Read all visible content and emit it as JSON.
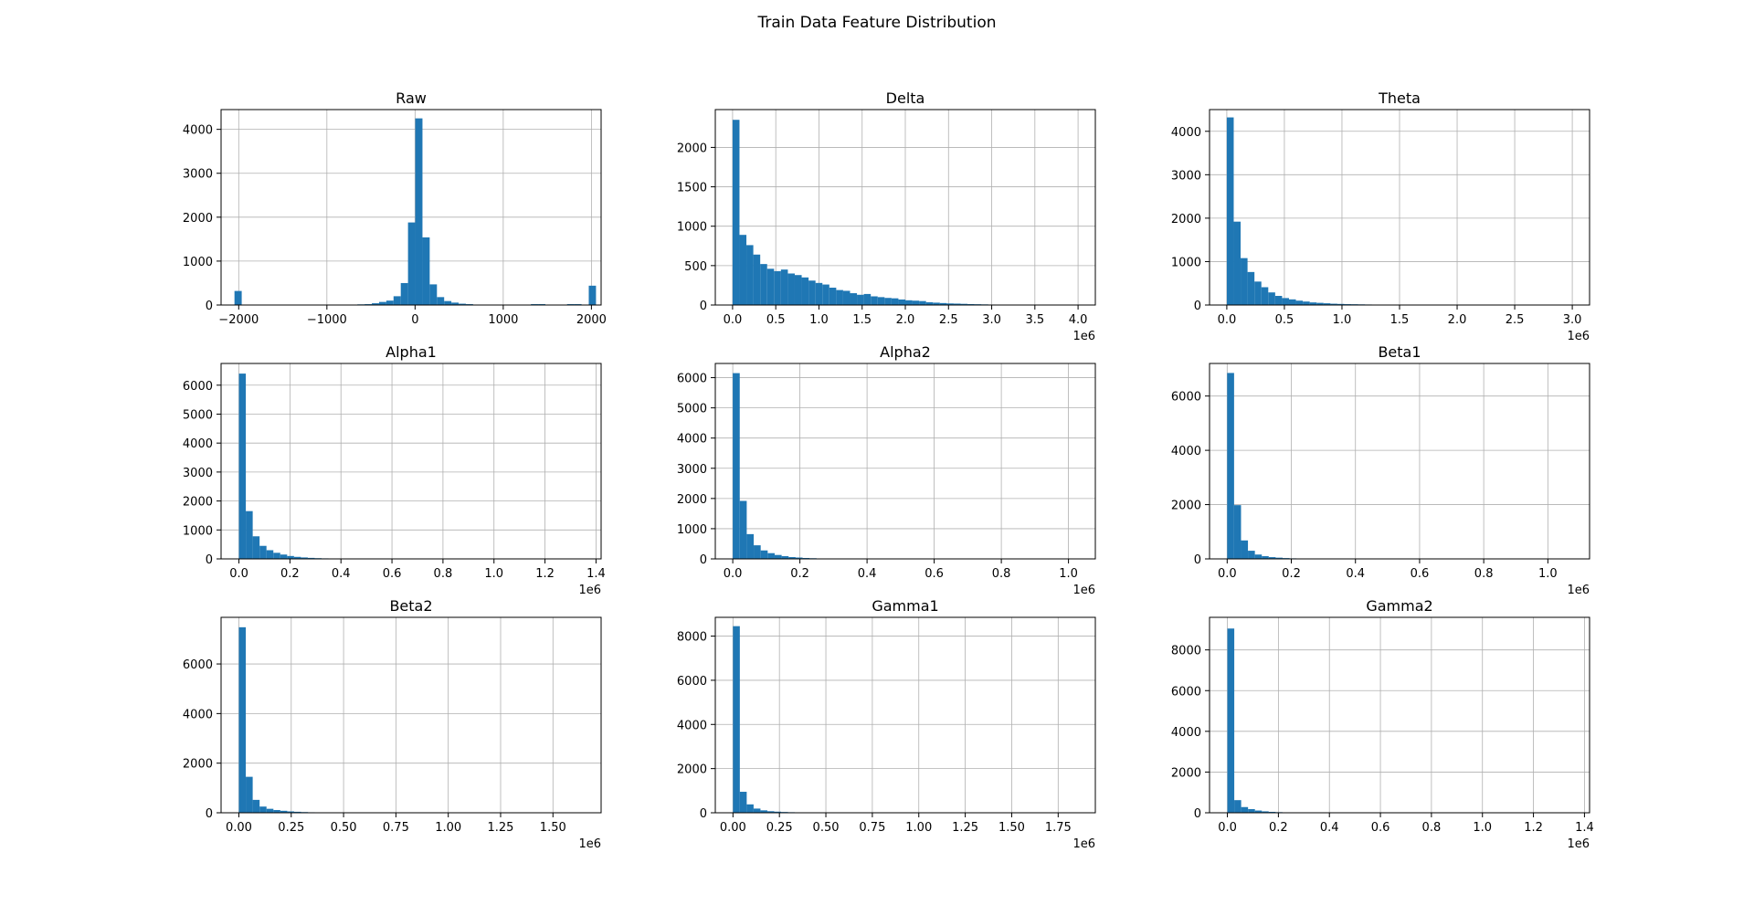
{
  "figure": {
    "title": "Train Data Feature Distribution"
  },
  "colors": {
    "bar": "#1f77b4",
    "grid": "#b0b0b0",
    "axis": "#000000"
  },
  "chart_data": [
    {
      "type": "bar",
      "title": "Raw",
      "xlim": [
        -2200,
        2110
      ],
      "ylim": [
        0,
        4450
      ],
      "xticks": [
        -2000,
        -1000,
        0,
        1000,
        2000
      ],
      "xticklabels": [
        "−2000",
        "−1000",
        "0",
        "1000",
        "2000"
      ],
      "yticks": [
        0,
        1000,
        2000,
        3000,
        4000
      ],
      "yticklabels": [
        "0",
        "1000",
        "2000",
        "3000",
        "4000"
      ],
      "offset_label": "",
      "grid": true,
      "bin_edges": [
        -2048,
        -1966,
        -1884,
        -1802,
        -1720,
        -1638,
        -1556,
        -1474,
        -1392,
        -1310,
        -1228,
        -1146,
        -1064,
        -982,
        -900,
        -818,
        -736,
        -654,
        -572,
        -490,
        -408,
        -326,
        -244,
        -162,
        -80,
        2,
        84,
        166,
        248,
        330,
        412,
        494,
        576,
        658,
        740,
        822,
        904,
        986,
        1068,
        1150,
        1232,
        1314,
        1396,
        1478,
        1560,
        1642,
        1724,
        1806,
        1888,
        1970,
        2052
      ],
      "counts": [
        320,
        0,
        0,
        0,
        0,
        0,
        0,
        0,
        0,
        0,
        0,
        0,
        0,
        0,
        0,
        5,
        10,
        15,
        20,
        40,
        70,
        100,
        200,
        500,
        1880,
        4250,
        1540,
        470,
        180,
        90,
        55,
        30,
        20,
        10,
        5,
        0,
        0,
        0,
        0,
        0,
        0,
        20,
        20,
        0,
        0,
        0,
        20,
        20,
        0,
        440
      ]
    },
    {
      "type": "bar",
      "title": "Delta",
      "xlim": [
        -200000,
        4200000
      ],
      "ylim": [
        0,
        2480
      ],
      "xticks": [
        0,
        500000,
        1000000,
        1500000,
        2000000,
        2500000,
        3000000,
        3500000,
        4000000
      ],
      "xticklabels": [
        "0.0",
        "0.5",
        "1.0",
        "1.5",
        "2.0",
        "2.5",
        "3.0",
        "3.5",
        "4.0"
      ],
      "yticks": [
        0,
        500,
        1000,
        1500,
        2000
      ],
      "yticklabels": [
        "0",
        "500",
        "1000",
        "1500",
        "2000"
      ],
      "offset_label": "1e6",
      "grid": true,
      "bin_edges": [
        0,
        80000,
        160000,
        240000,
        320000,
        400000,
        480000,
        560000,
        640000,
        720000,
        800000,
        880000,
        960000,
        1040000,
        1120000,
        1200000,
        1280000,
        1360000,
        1440000,
        1520000,
        1600000,
        1680000,
        1760000,
        1840000,
        1920000,
        2000000,
        2080000,
        2160000,
        2240000,
        2320000,
        2400000,
        2480000,
        2560000,
        2640000,
        2720000,
        2800000,
        2880000,
        2960000,
        3040000,
        3120000,
        3200000,
        3280000,
        3360000,
        3440000,
        3520000,
        3600000,
        3680000,
        3760000,
        3840000,
        3920000,
        4000000
      ],
      "counts": [
        2350,
        890,
        760,
        640,
        520,
        460,
        430,
        450,
        400,
        380,
        350,
        310,
        280,
        260,
        220,
        190,
        180,
        150,
        130,
        140,
        110,
        100,
        90,
        85,
        70,
        60,
        55,
        50,
        35,
        30,
        25,
        20,
        18,
        15,
        12,
        10,
        8,
        6,
        5,
        4,
        3,
        2,
        2,
        1,
        1,
        1,
        0,
        0,
        0,
        1
      ]
    },
    {
      "type": "bar",
      "title": "Theta",
      "xlim": [
        -150000,
        3150000
      ],
      "ylim": [
        0,
        4500
      ],
      "xticks": [
        0,
        500000,
        1000000,
        1500000,
        2000000,
        2500000,
        3000000
      ],
      "xticklabels": [
        "0.0",
        "0.5",
        "1.0",
        "1.5",
        "2.0",
        "2.5",
        "3.0"
      ],
      "yticks": [
        0,
        1000,
        2000,
        3000,
        4000
      ],
      "yticklabels": [
        "0",
        "1000",
        "2000",
        "3000",
        "4000"
      ],
      "offset_label": "1e6",
      "grid": true,
      "bin_edges": [
        0,
        60000,
        120000,
        180000,
        240000,
        300000,
        360000,
        420000,
        480000,
        540000,
        600000,
        660000,
        720000,
        780000,
        840000,
        900000,
        960000,
        1020000,
        1080000,
        1140000,
        1200000,
        1260000,
        1320000,
        1380000,
        1440000,
        1500000,
        1560000,
        1620000,
        1680000,
        1740000,
        1800000,
        1860000,
        1920000,
        1980000,
        2040000,
        2100000,
        2160000,
        2220000,
        2280000,
        2340000,
        2400000,
        2460000,
        2520000,
        2580000,
        2640000,
        2700000,
        2760000,
        2820000,
        2880000,
        2940000,
        3000000
      ],
      "counts": [
        4320,
        1920,
        1080,
        760,
        540,
        410,
        290,
        210,
        160,
        130,
        100,
        80,
        60,
        50,
        40,
        30,
        25,
        20,
        18,
        15,
        12,
        10,
        8,
        7,
        6,
        5,
        4,
        3,
        2,
        2,
        2,
        1,
        1,
        1,
        1,
        0,
        0,
        0,
        0,
        0,
        0,
        0,
        0,
        0,
        0,
        0,
        0,
        0,
        0,
        1
      ]
    },
    {
      "type": "bar",
      "title": "Alpha1",
      "xlim": [
        -70000,
        1420000
      ],
      "ylim": [
        0,
        6750
      ],
      "xticks": [
        0,
        200000,
        400000,
        600000,
        800000,
        1000000,
        1200000,
        1400000
      ],
      "xticklabels": [
        "0.0",
        "0.2",
        "0.4",
        "0.6",
        "0.8",
        "1.0",
        "1.2",
        "1.4"
      ],
      "yticks": [
        0,
        1000,
        2000,
        3000,
        4000,
        5000,
        6000
      ],
      "yticklabels": [
        "0",
        "1000",
        "2000",
        "3000",
        "4000",
        "5000",
        "6000"
      ],
      "offset_label": "1e6",
      "grid": true,
      "bin_edges": [
        0,
        27000,
        54000,
        81000,
        108000,
        135000,
        162000,
        189000,
        216000,
        243000,
        270000,
        297000,
        324000,
        351000,
        378000,
        405000,
        432000,
        459000,
        486000,
        513000,
        540000,
        567000,
        594000,
        621000,
        648000,
        675000,
        702000,
        729000,
        756000,
        783000,
        810000,
        837000,
        864000,
        891000,
        918000,
        945000,
        972000,
        999000,
        1026000,
        1053000,
        1080000,
        1107000,
        1134000,
        1161000,
        1188000,
        1215000,
        1242000,
        1269000,
        1296000,
        1323000,
        1350000
      ],
      "counts": [
        6400,
        1650,
        780,
        450,
        300,
        210,
        150,
        100,
        70,
        50,
        35,
        25,
        18,
        12,
        9,
        7,
        5,
        4,
        3,
        2,
        2,
        1,
        1,
        1,
        1,
        0,
        0,
        0,
        0,
        0,
        0,
        0,
        0,
        0,
        0,
        0,
        0,
        0,
        0,
        0,
        0,
        0,
        0,
        0,
        0,
        0,
        0,
        0,
        0,
        1
      ]
    },
    {
      "type": "bar",
      "title": "Alpha2",
      "xlim": [
        -52000,
        1080000
      ],
      "ylim": [
        0,
        6470
      ],
      "xticks": [
        0,
        200000,
        400000,
        600000,
        800000,
        1000000
      ],
      "xticklabels": [
        "0.0",
        "0.2",
        "0.4",
        "0.6",
        "0.8",
        "1.0"
      ],
      "yticks": [
        0,
        1000,
        2000,
        3000,
        4000,
        5000,
        6000
      ],
      "yticklabels": [
        "0",
        "1000",
        "2000",
        "3000",
        "4000",
        "5000",
        "6000"
      ],
      "offset_label": "1e6",
      "grid": true,
      "bin_edges": [
        0,
        20800,
        41600,
        62400,
        83200,
        104000,
        124800,
        145600,
        166400,
        187200,
        208000,
        228800,
        249600,
        270400,
        291200,
        312000,
        332800,
        353600,
        374400,
        395200,
        416000,
        436800,
        457600,
        478400,
        499200,
        520000,
        540800,
        561600,
        582400,
        603200,
        624000,
        644800,
        665600,
        686400,
        707200,
        728000,
        748800,
        769600,
        790400,
        811200,
        832000,
        852800,
        873600,
        894400,
        915200,
        936000,
        956800,
        977600,
        998400,
        1019200,
        1040000
      ],
      "counts": [
        6150,
        1920,
        820,
        450,
        280,
        190,
        130,
        90,
        60,
        45,
        30,
        22,
        15,
        10,
        8,
        6,
        4,
        3,
        2,
        2,
        1,
        1,
        1,
        0,
        0,
        0,
        0,
        0,
        0,
        0,
        0,
        0,
        0,
        0,
        0,
        0,
        0,
        0,
        0,
        0,
        0,
        0,
        0,
        0,
        0,
        0,
        0,
        0,
        0,
        1
      ]
    },
    {
      "type": "bar",
      "title": "Beta1",
      "xlim": [
        -55000,
        1130000
      ],
      "ylim": [
        0,
        7200
      ],
      "xticks": [
        0,
        200000,
        400000,
        600000,
        800000,
        1000000
      ],
      "xticklabels": [
        "0.0",
        "0.2",
        "0.4",
        "0.6",
        "0.8",
        "1.0"
      ],
      "yticks": [
        0,
        2000,
        4000,
        6000
      ],
      "yticklabels": [
        "0",
        "2000",
        "4000",
        "6000"
      ],
      "offset_label": "1e6",
      "grid": true,
      "bin_edges": [
        0,
        21600,
        43200,
        64800,
        86400,
        108000,
        129600,
        151200,
        172800,
        194400,
        216000,
        237600,
        259200,
        280800,
        302400,
        324000,
        345600,
        367200,
        388800,
        410400,
        432000,
        453600,
        475200,
        496800,
        518400,
        540000,
        561600,
        583200,
        604800,
        626400,
        648000,
        669600,
        691200,
        712800,
        734400,
        756000,
        777600,
        799200,
        820800,
        842400,
        864000,
        885600,
        907200,
        928800,
        950400,
        972000,
        993600,
        1015200,
        1036800,
        1058400,
        1080000
      ],
      "counts": [
        6850,
        1980,
        680,
        300,
        160,
        100,
        65,
        45,
        30,
        20,
        14,
        10,
        7,
        5,
        4,
        3,
        2,
        2,
        1,
        1,
        1,
        0,
        0,
        0,
        0,
        0,
        0,
        0,
        0,
        0,
        0,
        0,
        0,
        0,
        0,
        0,
        0,
        0,
        0,
        0,
        0,
        0,
        0,
        0,
        0,
        0,
        0,
        0,
        0,
        1
      ]
    },
    {
      "type": "bar",
      "title": "Beta2",
      "xlim": [
        -85000,
        1730000
      ],
      "ylim": [
        0,
        7880
      ],
      "xticks": [
        0,
        250000,
        500000,
        750000,
        1000000,
        1250000,
        1500000
      ],
      "xticklabels": [
        "0.00",
        "0.25",
        "0.50",
        "0.75",
        "1.00",
        "1.25",
        "1.50"
      ],
      "yticks": [
        0,
        2000,
        4000,
        6000
      ],
      "yticklabels": [
        "0",
        "2000",
        "4000",
        "6000"
      ],
      "offset_label": "1e6",
      "grid": true,
      "bin_edges": [
        0,
        33000,
        66000,
        99000,
        132000,
        165000,
        198000,
        231000,
        264000,
        297000,
        330000,
        363000,
        396000,
        429000,
        462000,
        495000,
        528000,
        561000,
        594000,
        627000,
        660000,
        693000,
        726000,
        759000,
        792000,
        825000,
        858000,
        891000,
        924000,
        957000,
        990000,
        1023000,
        1056000,
        1089000,
        1122000,
        1155000,
        1188000,
        1221000,
        1254000,
        1287000,
        1320000,
        1353000,
        1386000,
        1419000,
        1452000,
        1485000,
        1518000,
        1551000,
        1584000,
        1617000,
        1650000
      ],
      "counts": [
        7480,
        1450,
        520,
        250,
        160,
        110,
        80,
        55,
        40,
        28,
        20,
        14,
        10,
        7,
        5,
        4,
        3,
        2,
        2,
        1,
        1,
        1,
        0,
        0,
        0,
        0,
        0,
        0,
        0,
        0,
        0,
        0,
        0,
        0,
        0,
        0,
        0,
        0,
        0,
        0,
        0,
        0,
        0,
        0,
        0,
        0,
        0,
        0,
        0,
        1
      ]
    },
    {
      "type": "bar",
      "title": "Gamma1",
      "xlim": [
        -95000,
        1950000
      ],
      "ylim": [
        0,
        8850
      ],
      "xticks": [
        0,
        250000,
        500000,
        750000,
        1000000,
        1250000,
        1500000,
        1750000
      ],
      "xticklabels": [
        "0.00",
        "0.25",
        "0.50",
        "0.75",
        "1.00",
        "1.25",
        "1.50",
        "1.75"
      ],
      "yticks": [
        0,
        2000,
        4000,
        6000,
        8000
      ],
      "yticklabels": [
        "0",
        "2000",
        "4000",
        "6000",
        "8000"
      ],
      "offset_label": "1e6",
      "grid": true,
      "bin_edges": [
        0,
        37000,
        74000,
        111000,
        148000,
        185000,
        222000,
        259000,
        296000,
        333000,
        370000,
        407000,
        444000,
        481000,
        518000,
        555000,
        592000,
        629000,
        666000,
        703000,
        740000,
        777000,
        814000,
        851000,
        888000,
        925000,
        962000,
        999000,
        1036000,
        1073000,
        1110000,
        1147000,
        1184000,
        1221000,
        1258000,
        1295000,
        1332000,
        1369000,
        1406000,
        1443000,
        1480000,
        1517000,
        1554000,
        1591000,
        1628000,
        1665000,
        1702000,
        1739000,
        1776000,
        1813000,
        1850000
      ],
      "counts": [
        8450,
        950,
        380,
        190,
        110,
        70,
        50,
        35,
        25,
        18,
        12,
        9,
        6,
        5,
        4,
        3,
        2,
        2,
        1,
        1,
        1,
        0,
        0,
        0,
        0,
        0,
        0,
        0,
        0,
        0,
        0,
        0,
        0,
        0,
        0,
        0,
        0,
        0,
        0,
        0,
        0,
        0,
        0,
        0,
        0,
        0,
        0,
        0,
        0,
        1
      ]
    },
    {
      "type": "bar",
      "title": "Gamma2",
      "xlim": [
        -70000,
        1420000
      ],
      "ylim": [
        0,
        9600
      ],
      "xticks": [
        0,
        200000,
        400000,
        600000,
        800000,
        1000000,
        1200000,
        1400000
      ],
      "xticklabels": [
        "0.0",
        "0.2",
        "0.4",
        "0.6",
        "0.8",
        "1.0",
        "1.2",
        "1.4"
      ],
      "yticks": [
        0,
        2000,
        4000,
        6000,
        8000
      ],
      "yticklabels": [
        "0",
        "2000",
        "4000",
        "6000",
        "8000"
      ],
      "offset_label": "1e6",
      "grid": true,
      "bin_edges": [
        0,
        27000,
        54000,
        81000,
        108000,
        135000,
        162000,
        189000,
        216000,
        243000,
        270000,
        297000,
        324000,
        351000,
        378000,
        405000,
        432000,
        459000,
        486000,
        513000,
        540000,
        567000,
        594000,
        621000,
        648000,
        675000,
        702000,
        729000,
        756000,
        783000,
        810000,
        837000,
        864000,
        891000,
        918000,
        945000,
        972000,
        999000,
        1026000,
        1053000,
        1080000,
        1107000,
        1134000,
        1161000,
        1188000,
        1215000,
        1242000,
        1269000,
        1296000,
        1323000,
        1350000
      ],
      "counts": [
        9050,
        620,
        280,
        180,
        110,
        70,
        45,
        30,
        20,
        14,
        10,
        7,
        5,
        4,
        3,
        2,
        2,
        1,
        1,
        1,
        0,
        0,
        0,
        0,
        0,
        0,
        0,
        0,
        0,
        0,
        0,
        0,
        0,
        0,
        0,
        0,
        0,
        0,
        0,
        0,
        0,
        0,
        0,
        0,
        0,
        0,
        0,
        0,
        0,
        1
      ]
    }
  ]
}
